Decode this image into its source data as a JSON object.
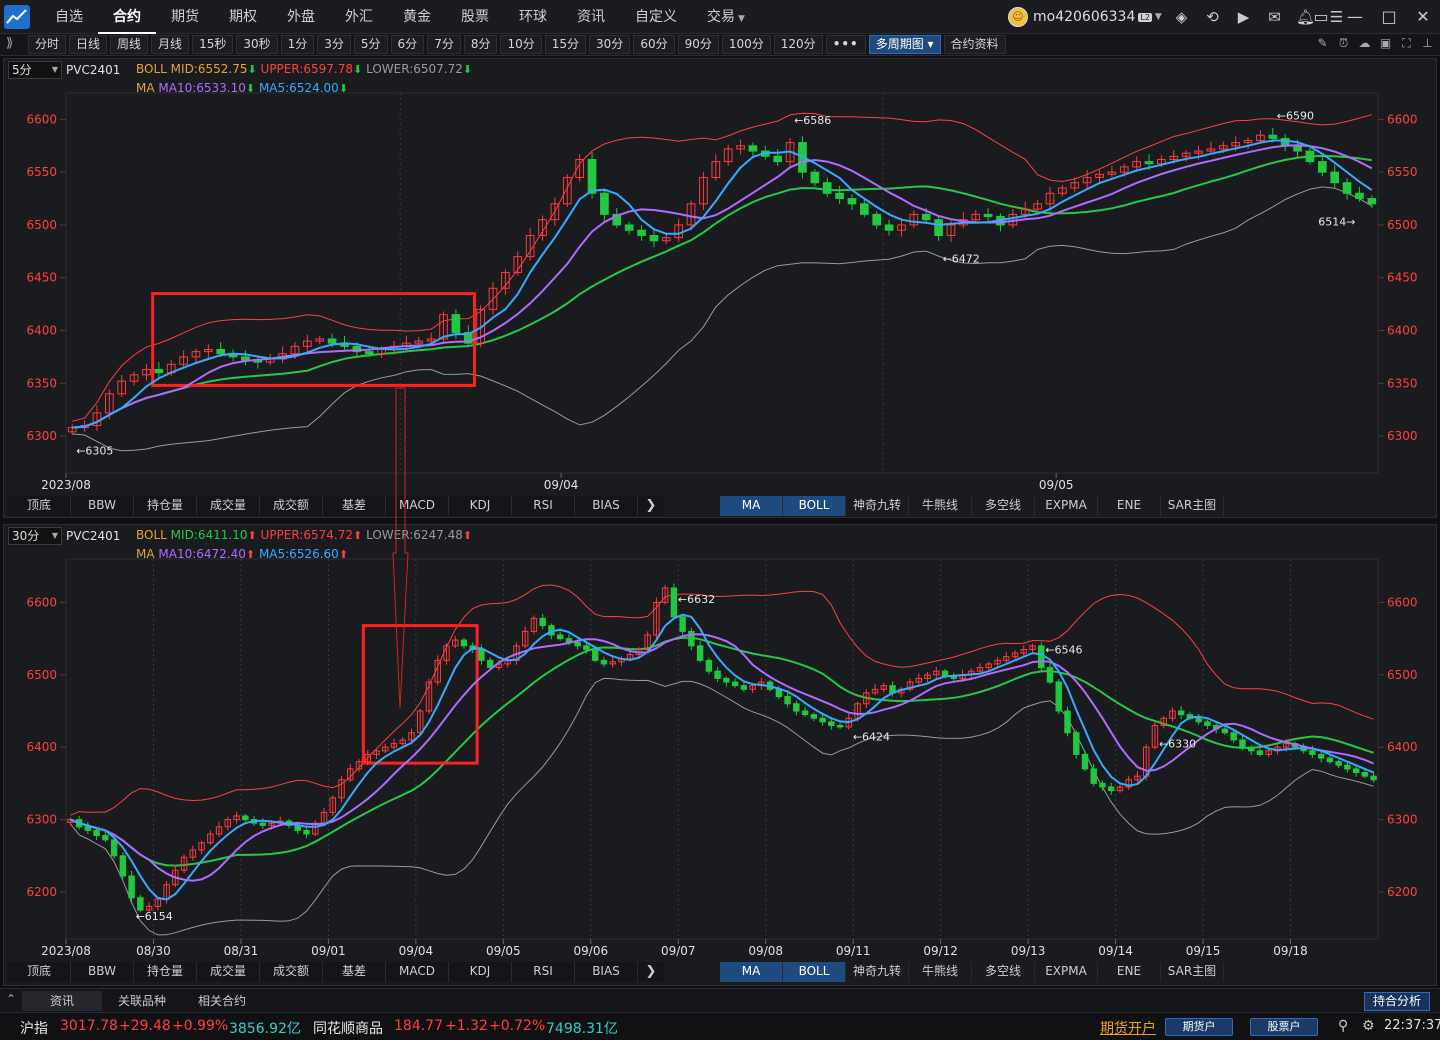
{
  "app": {
    "menu": [
      {
        "label": "自选"
      },
      {
        "label": "合约",
        "active": true
      },
      {
        "label": "期货"
      },
      {
        "label": "期权"
      },
      {
        "label": "外盘"
      },
      {
        "label": "外汇"
      },
      {
        "label": "黄金"
      },
      {
        "label": "股票"
      },
      {
        "label": "环球"
      },
      {
        "label": "资讯"
      },
      {
        "label": "自定义"
      },
      {
        "label": "交易",
        "caret": true
      }
    ],
    "username": "mo420606334",
    "level_badge": "L2",
    "top_icons": [
      "layers-icon",
      "refresh-icon",
      "video-icon",
      "mail-icon",
      "bell-icon",
      "list-icon"
    ],
    "window_controls": [
      "skin-icon",
      "minimize-icon",
      "maximize-icon",
      "close-icon"
    ]
  },
  "periods": {
    "expand_label": "⟫",
    "buttons": [
      "分时",
      "日线",
      "周线",
      "月线",
      "15秒",
      "30秒",
      "1分",
      "3分",
      "5分",
      "6分",
      "7分",
      "8分",
      "10分",
      "15分",
      "30分",
      "60分",
      "90分",
      "100分",
      "120分",
      "•••",
      "多周期图",
      "合约资料"
    ],
    "active": "多周期图",
    "right_icons": [
      "pen-icon",
      "alarm-icon",
      "cloud-icon",
      "camera-icon",
      "fullscreen-icon",
      "pin-icon"
    ]
  },
  "colors": {
    "up": "#ff3b3b",
    "down": "#21c840",
    "boll_mid": "#e3a23a",
    "boll_upper": "#ff4040",
    "boll_lower": "#9a9a9a",
    "ma10": "#b06bff",
    "ma5": "#3aa8ff",
    "ma20": "#25c947",
    "highlight_box": "#ff2020",
    "axis_label": "#ff4040"
  },
  "panels": [
    {
      "period": "5分",
      "symbol": "PVC2401",
      "boll": {
        "label": "BOLL",
        "mid": "MID:6552.75",
        "upper": "UPPER:6597.78",
        "lower": "LOWER:6507.72",
        "mid_dir": "down",
        "upper_dir": "down",
        "lower_dir": "down"
      },
      "ma": {
        "label": "MA",
        "ma10": "MA10:6533.10",
        "ma5": "MA5:6524.00",
        "ma10_dir": "down",
        "ma5_dir": "down"
      },
      "tabs": [
        "顶底",
        "BBW",
        "持仓量",
        "成交量",
        "成交额",
        "基差",
        "MACD",
        "KDJ",
        "RSI",
        "BIAS"
      ],
      "overlay_tabs": [
        "MA",
        "BOLL",
        "神奇九转",
        "牛熊线",
        "多空线",
        "EXPMA",
        "ENE",
        "SAR主图"
      ],
      "overlay_selected": [
        "MA",
        "BOLL"
      ]
    },
    {
      "period": "30分",
      "symbol": "PVC2401",
      "boll": {
        "label": "BOLL",
        "mid": "MID:6411.10",
        "upper": "UPPER:6574.72",
        "lower": "LOWER:6247.48",
        "mid_dir": "up",
        "upper_dir": "up",
        "lower_dir": "up"
      },
      "ma": {
        "label": "MA",
        "ma10": "MA10:6472.40",
        "ma5": "MA5:6526.60",
        "ma10_dir": "up",
        "ma5_dir": "up"
      },
      "tabs": [
        "顶底",
        "BBW",
        "持仓量",
        "成交量",
        "成交额",
        "基差",
        "MACD",
        "KDJ",
        "RSI",
        "BIAS"
      ],
      "overlay_tabs": [
        "MA",
        "BOLL",
        "神奇九转",
        "牛熊线",
        "多空线",
        "EXPMA",
        "ENE",
        "SAR主图"
      ],
      "overlay_selected": [
        "MA",
        "BOLL"
      ]
    }
  ],
  "bottom": {
    "tabs": [
      "资讯",
      "关联品种",
      "相关合约"
    ],
    "active": "资讯",
    "hold_analysis": "持合分析",
    "toggle": "⌃"
  },
  "status": {
    "idx1_name": "沪指",
    "idx1_price": "3017.78",
    "idx1_chg": "+29.48",
    "idx1_pct": "+0.99%",
    "idx1_amt": "3856.92亿",
    "idx2_name": "同花顺商品",
    "idx2_price": "184.77",
    "idx2_chg": "+1.32",
    "idx2_pct": "+0.72%",
    "idx2_amt": "7498.31亿",
    "futures_open": "期货开户",
    "futures_acct": "期货户",
    "stock_acct": "股票户",
    "clock": "22:37:37"
  },
  "chart_data": [
    {
      "type": "candlestick",
      "period": "5分",
      "symbol": "PVC2401",
      "y_ticks": [
        6300,
        6350,
        6400,
        6450,
        6500,
        6550,
        6600
      ],
      "ylim": [
        6265,
        6625
      ],
      "x_labels": [
        "2023/08",
        "09/04",
        "09/05"
      ],
      "x_label_index": [
        0,
        40,
        80
      ],
      "separator_index": [
        27,
        66
      ],
      "mark_high": {
        "label": "6586",
        "index": 58
      },
      "mark_low": {
        "label": "6305",
        "index": 0
      },
      "marks": [
        {
          "label": "6472",
          "index": 70,
          "side": "low"
        },
        {
          "label": "6590",
          "index": 97,
          "side": "high"
        },
        {
          "label": "6514",
          "index": 104,
          "side": "low"
        }
      ],
      "highlight_range": [
        7,
        32
      ],
      "close": [
        6308,
        6310,
        6322,
        6340,
        6352,
        6358,
        6363,
        6360,
        6368,
        6375,
        6380,
        6382,
        6378,
        6375,
        6372,
        6370,
        6373,
        6378,
        6385,
        6390,
        6392,
        6388,
        6385,
        6380,
        6378,
        6382,
        6385,
        6388,
        6390,
        6392,
        6415,
        6398,
        6388,
        6420,
        6440,
        6455,
        6470,
        6490,
        6505,
        6520,
        6545,
        6562,
        6530,
        6510,
        6500,
        6495,
        6490,
        6485,
        6488,
        6500,
        6520,
        6545,
        6560,
        6572,
        6575,
        6570,
        6565,
        6560,
        6578,
        6550,
        6540,
        6530,
        6525,
        6520,
        6510,
        6500,
        6495,
        6500,
        6510,
        6505,
        6490,
        6500,
        6505,
        6510,
        6508,
        6500,
        6510,
        6515,
        6520,
        6530,
        6535,
        6540,
        6545,
        6548,
        6550,
        6555,
        6560,
        6558,
        6562,
        6565,
        6568,
        6570,
        6572,
        6575,
        6578,
        6580,
        6585,
        6582,
        6575,
        6570,
        6560,
        6550,
        6540,
        6530,
        6525,
        6520
      ]
    },
    {
      "type": "candlestick",
      "period": "30分",
      "symbol": "PVC2401",
      "y_ticks": [
        6200,
        6300,
        6400,
        6500,
        6600
      ],
      "ylim": [
        6135,
        6660
      ],
      "x_labels": [
        "2023/08",
        "08/30",
        "08/31",
        "09/01",
        "09/04",
        "09/05",
        "09/06",
        "09/07",
        "09/08",
        "09/11",
        "09/12",
        "09/13",
        "09/14",
        "09/15",
        "09/18"
      ],
      "x_label_index": [
        0,
        10,
        20,
        30,
        40,
        50,
        60,
        70,
        80,
        90,
        100,
        110,
        120,
        130,
        140
      ],
      "mark_high": {
        "label": "6632",
        "index": 69
      },
      "mark_low": {
        "label": "6154",
        "index": 7
      },
      "marks": [
        {
          "label": "6546",
          "index": 111,
          "side": "high"
        },
        {
          "label": "6424",
          "index": 89,
          "side": "low"
        },
        {
          "label": "6330",
          "index": 124,
          "side": "low"
        }
      ],
      "highlight_range": [
        34,
        46
      ],
      "close": [
        6300,
        6290,
        6285,
        6278,
        6272,
        6250,
        6222,
        6192,
        6175,
        6180,
        6190,
        6210,
        6230,
        6248,
        6258,
        6268,
        6280,
        6290,
        6300,
        6305,
        6300,
        6295,
        6292,
        6295,
        6298,
        6292,
        6285,
        6280,
        6295,
        6310,
        6330,
        6355,
        6370,
        6380,
        6390,
        6395,
        6400,
        6405,
        6410,
        6420,
        6450,
        6490,
        6520,
        6540,
        6548,
        6540,
        6535,
        6520,
        6510,
        6515,
        6520,
        6540,
        6560,
        6578,
        6568,
        6555,
        6550,
        6545,
        6540,
        6535,
        6520,
        6515,
        6518,
        6522,
        6528,
        6535,
        6555,
        6600,
        6620,
        6580,
        6560,
        6540,
        6520,
        6505,
        6495,
        6490,
        6485,
        6480,
        6485,
        6490,
        6480,
        6470,
        6460,
        6450,
        6445,
        6440,
        6435,
        6430,
        6428,
        6440,
        6460,
        6475,
        6480,
        6485,
        6475,
        6480,
        6490,
        6495,
        6500,
        6505,
        6498,
        6495,
        6500,
        6505,
        6510,
        6515,
        6520,
        6525,
        6530,
        6535,
        6540,
        6510,
        6490,
        6450,
        6420,
        6390,
        6370,
        6350,
        6345,
        6340,
        6345,
        6355,
        6360,
        6400,
        6430,
        6440,
        6450,
        6445,
        6440,
        6435,
        6430,
        6425,
        6420,
        6410,
        6400,
        6395,
        6390,
        6395,
        6400,
        6405,
        6400,
        6395,
        6390,
        6385,
        6380,
        6375,
        6370,
        6365,
        6360,
        6355
      ]
    }
  ]
}
